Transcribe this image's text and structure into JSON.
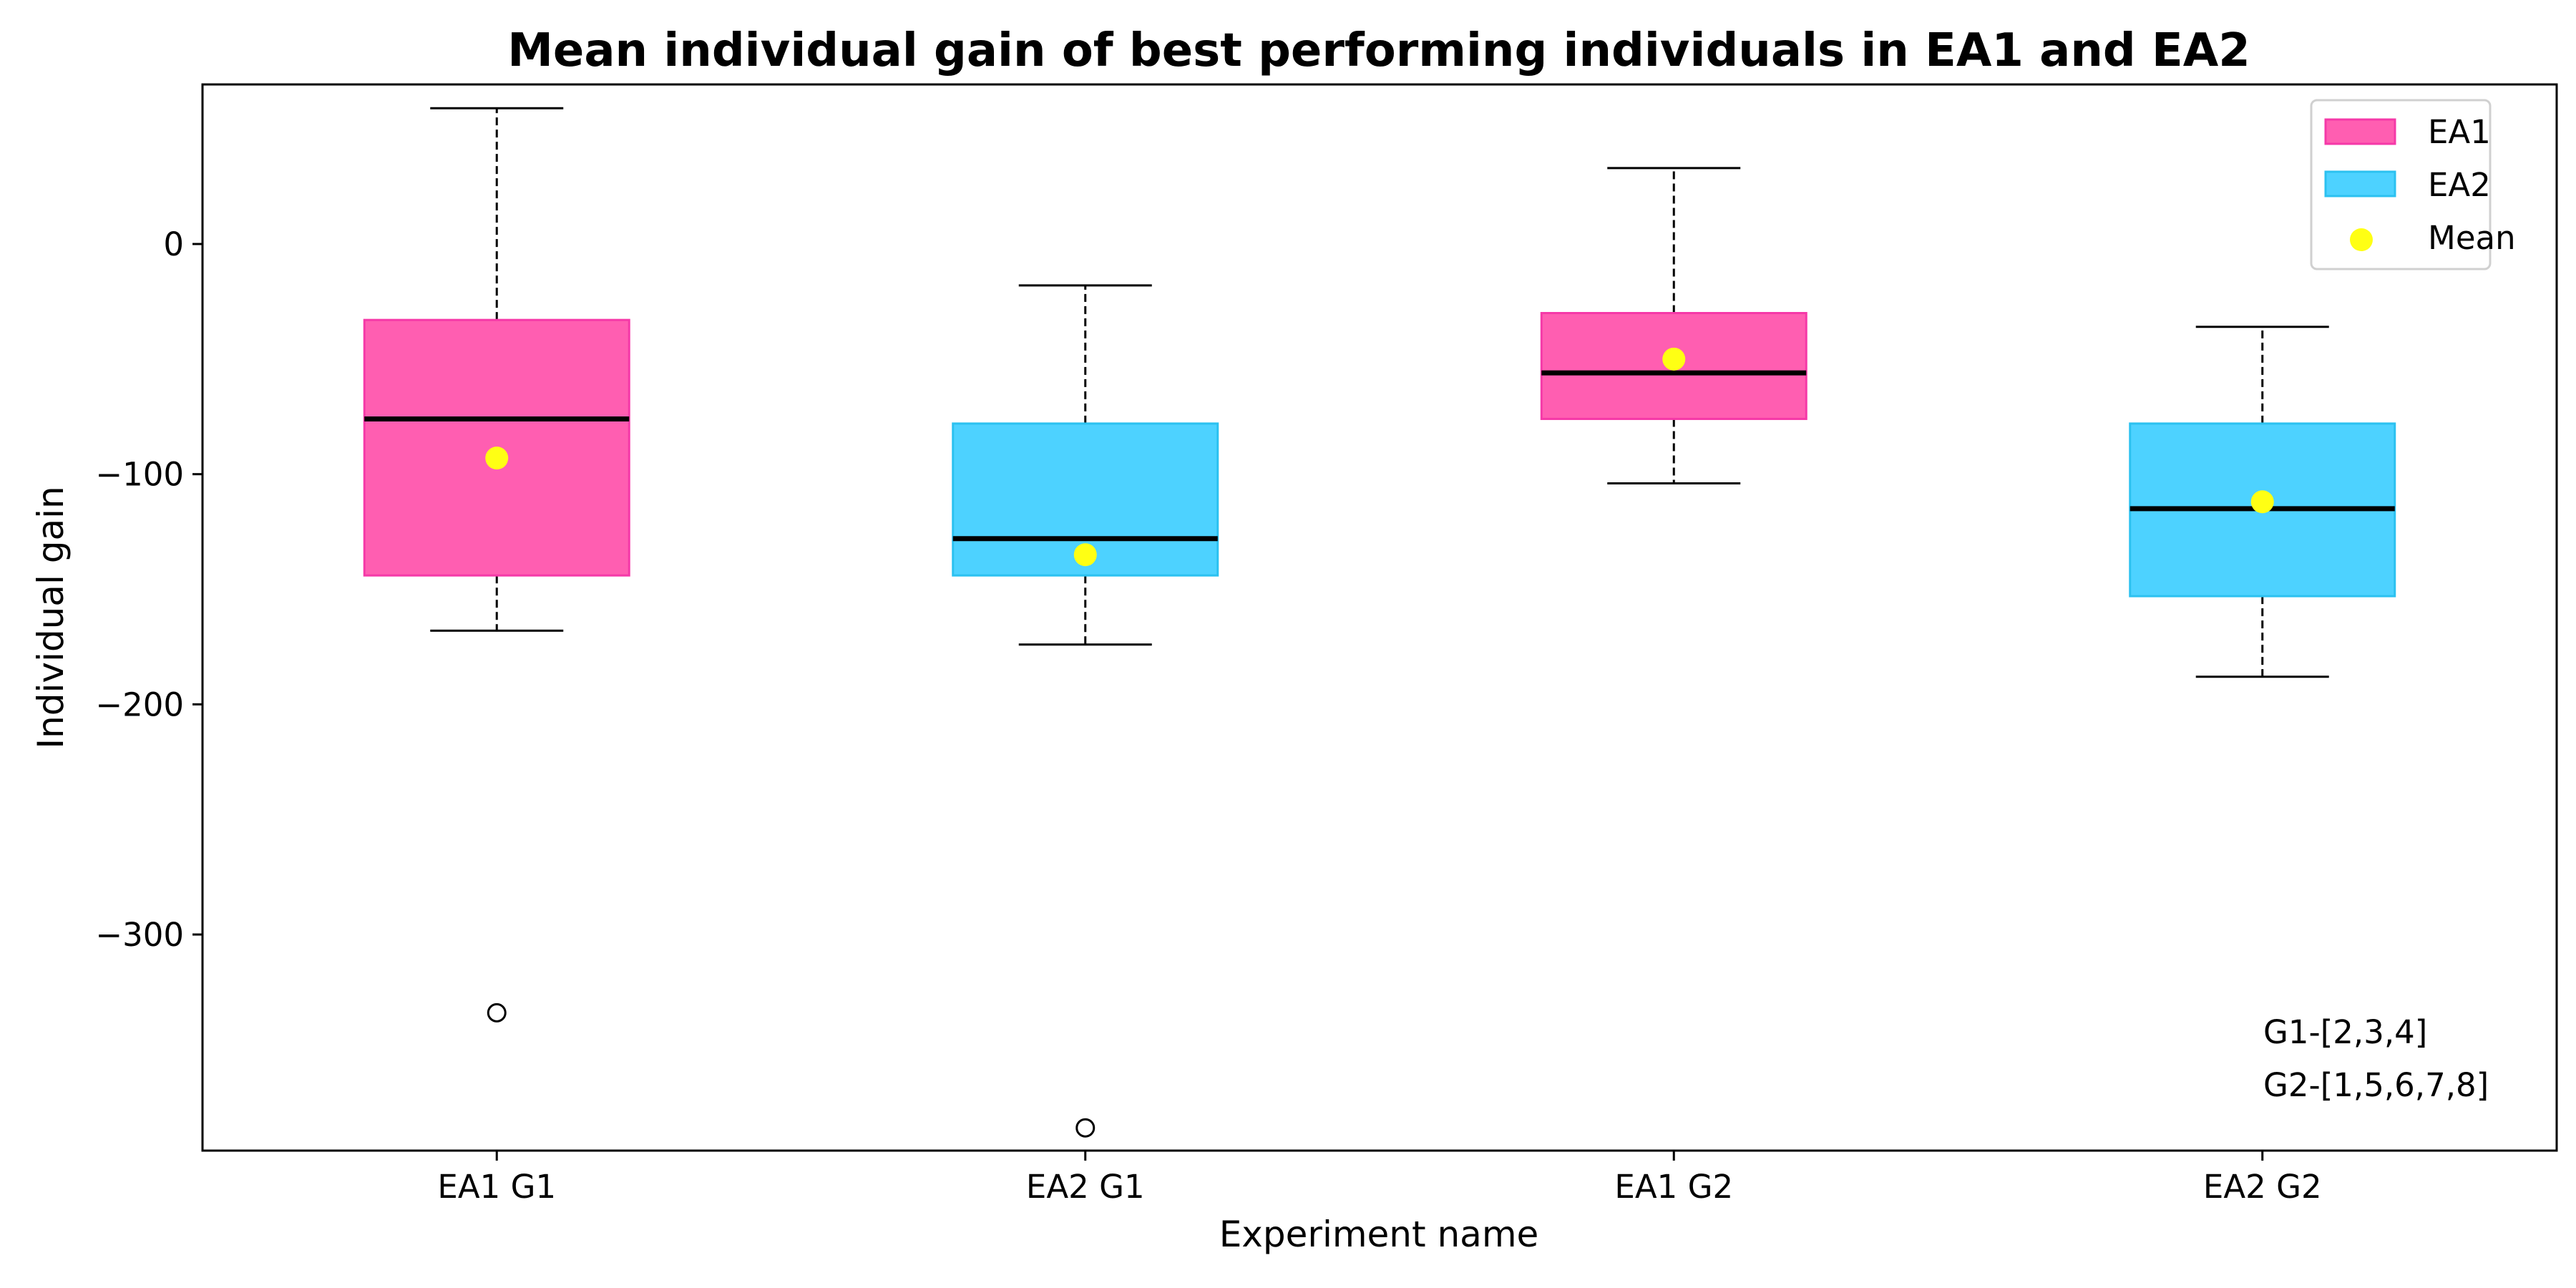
{
  "chart_data": {
    "type": "box",
    "title": "Mean individual gain of best performing individuals in EA1 and EA2",
    "xlabel": "Experiment name",
    "ylabel": "Individual gain",
    "ylim": [
      -392,
      70
    ],
    "yticks": [
      0,
      -100,
      -200,
      -300
    ],
    "ytick_labels": [
      "0",
      "−100",
      "−200",
      "−300"
    ],
    "grid": false,
    "legend_position": "top-right",
    "legend": [
      {
        "label": "EA1",
        "kind": "box",
        "color": "#ff5eb1"
      },
      {
        "label": "EA2",
        "kind": "box",
        "color": "#4dd2ff"
      },
      {
        "label": "Mean",
        "kind": "marker",
        "color": "#ffff14"
      }
    ],
    "annotations": [
      "G1-[2,3,4]",
      "G2-[1,5,6,7,8]"
    ],
    "colors": {
      "EA1_fill": "#ff5eb1",
      "EA1_edge": "#f539a8",
      "EA2_fill": "#4dd2ff",
      "EA2_edge": "#2bc1f0",
      "median": "#000000",
      "mean": "#ffff14"
    },
    "boxes": [
      {
        "label": "EA1 G1",
        "group": "EA1",
        "whisker_low": -168,
        "q1": -144,
        "median": -76,
        "q3": -33,
        "whisker_high": 59,
        "mean": -93,
        "outliers": [
          -334
        ]
      },
      {
        "label": "EA2 G1",
        "group": "EA2",
        "whisker_low": -174,
        "q1": -144,
        "median": -128,
        "q3": -78,
        "whisker_high": -18,
        "mean": -135,
        "outliers": [
          -384
        ]
      },
      {
        "label": "EA1 G2",
        "group": "EA1",
        "whisker_low": -104,
        "q1": -76,
        "median": -56,
        "q3": -30,
        "whisker_high": 33,
        "mean": -50,
        "outliers": []
      },
      {
        "label": "EA2 G2",
        "group": "EA2",
        "whisker_low": -188,
        "q1": -153,
        "median": -115,
        "q3": -78,
        "whisker_high": -36,
        "mean": -112,
        "outliers": []
      }
    ]
  }
}
